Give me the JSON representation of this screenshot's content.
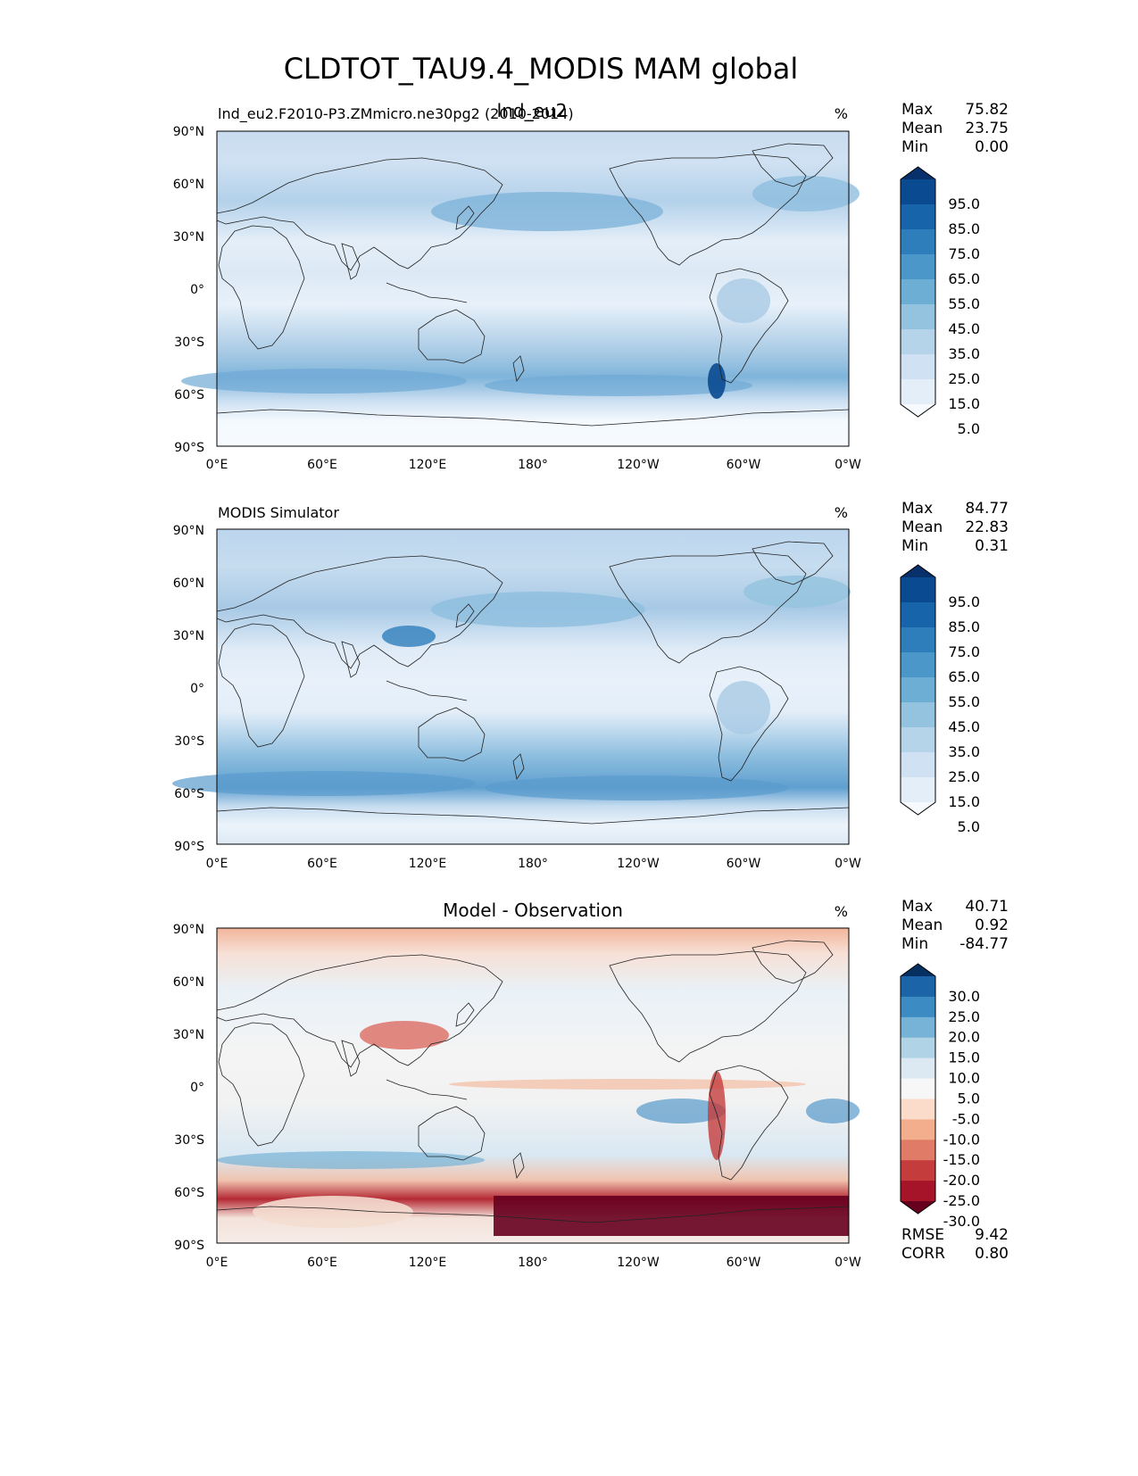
{
  "figure": {
    "title": "CLDTOT_TAU9.4_MODIS MAM global"
  },
  "axes": {
    "lat_ticks": [
      "90°N",
      "60°N",
      "30°N",
      "0°",
      "30°S",
      "60°S",
      "90°S"
    ],
    "lon_ticks": [
      "0°E",
      "60°E",
      "120°E",
      "180°",
      "120°W",
      "60°W",
      "0°W"
    ]
  },
  "panels": [
    {
      "left_title": "lnd_eu2.F2010-P3.ZMmicro.ne30pg2 (2010-2014)",
      "center_title": "lnd_eu2",
      "units": "%",
      "stats": [
        {
          "label": "Max",
          "value": "75.82"
        },
        {
          "label": "Mean",
          "value": "23.75"
        },
        {
          "label": "Min",
          "value": "0.00"
        }
      ],
      "colorbar": {
        "colors": [
          "#f7fbff",
          "#e3eef9",
          "#cfe1f2",
          "#b5d4e9",
          "#93c3df",
          "#6daed5",
          "#4b97c9",
          "#2f7ebc",
          "#1864aa",
          "#0a4a90",
          "#08306b"
        ],
        "labels": [
          "95.0",
          "85.0",
          "75.0",
          "65.0",
          "55.0",
          "45.0",
          "35.0",
          "25.0",
          "15.0",
          "5.0"
        ]
      }
    },
    {
      "left_title": "MODIS Simulator",
      "center_title": "",
      "units": "%",
      "stats": [
        {
          "label": "Max",
          "value": "84.77"
        },
        {
          "label": "Mean",
          "value": "22.83"
        },
        {
          "label": "Min",
          "value": "0.31"
        }
      ],
      "colorbar": {
        "colors": [
          "#f7fbff",
          "#e3eef9",
          "#cfe1f2",
          "#b5d4e9",
          "#93c3df",
          "#6daed5",
          "#4b97c9",
          "#2f7ebc",
          "#1864aa",
          "#0a4a90",
          "#08306b"
        ],
        "labels": [
          "95.0",
          "85.0",
          "75.0",
          "65.0",
          "55.0",
          "45.0",
          "35.0",
          "25.0",
          "15.0",
          "5.0"
        ]
      }
    },
    {
      "left_title": "",
      "center_title": "Model - Observation",
      "units": "%",
      "stats": [
        {
          "label": "Max",
          "value": "40.71"
        },
        {
          "label": "Mean",
          "value": "0.92"
        },
        {
          "label": "Min",
          "value": "-84.77"
        }
      ],
      "colorbar": {
        "colors": [
          "#67001f",
          "#a51429",
          "#c43c3c",
          "#e07b67",
          "#f3ae8e",
          "#fbdbc9",
          "#f7f7f7",
          "#dce9f2",
          "#b0d3e6",
          "#77b3d6",
          "#3c8bc3",
          "#1b64a8",
          "#053061"
        ],
        "labels": [
          "30.0",
          "25.0",
          "20.0",
          "15.0",
          "10.0",
          "5.0",
          "-5.0",
          "-10.0",
          "-15.0",
          "-20.0",
          "-25.0",
          "-30.0"
        ]
      },
      "metrics": [
        {
          "label": "RMSE",
          "value": "9.42"
        },
        {
          "label": "CORR",
          "value": "0.80"
        }
      ]
    }
  ]
}
